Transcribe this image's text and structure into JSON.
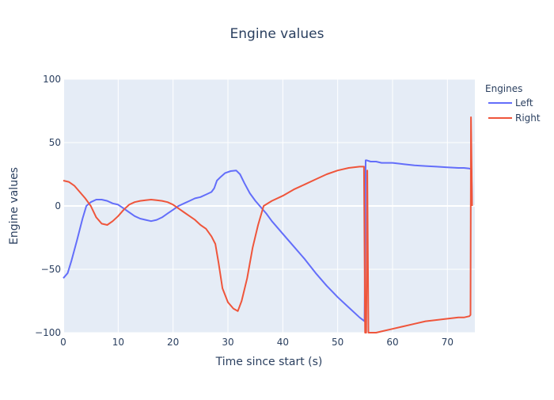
{
  "chart_data": {
    "type": "line",
    "title": "Engine values",
    "xlabel": "Time since start (s)",
    "ylabel": "Engine values",
    "xlim": [
      0,
      75
    ],
    "ylim": [
      -100,
      100
    ],
    "x_ticks": [
      0,
      10,
      20,
      30,
      40,
      50,
      60,
      70
    ],
    "y_ticks": [
      -100,
      -50,
      0,
      50,
      100
    ],
    "x_tick_labels": [
      "0",
      "10",
      "20",
      "30",
      "40",
      "50",
      "60",
      "70"
    ],
    "y_tick_labels": [
      "−100",
      "−50",
      "0",
      "50",
      "100"
    ],
    "grid": true,
    "plot_background": "#e5ecf6",
    "legend": {
      "title": "Engines",
      "position": "right"
    },
    "series": [
      {
        "name": "Left",
        "color": "#636efa",
        "x": [
          0,
          0.8,
          1.5,
          2.5,
          3.5,
          4.2,
          5,
          6,
          7,
          8,
          9,
          10,
          11,
          12,
          13,
          14,
          15,
          16,
          17,
          18,
          19,
          20,
          21,
          22,
          23,
          24,
          25,
          26,
          27,
          27.5,
          28,
          28.7,
          29.5,
          30.5,
          31.5,
          32.2,
          33,
          34,
          35,
          36,
          37,
          38,
          40,
          42,
          44,
          46,
          48,
          50,
          52,
          54,
          54.9,
          55.1,
          55.3,
          56,
          57,
          58,
          60,
          62,
          64,
          66,
          68,
          70,
          72,
          73,
          74,
          74.4,
          74.5
        ],
        "y": [
          -57,
          -53,
          -43,
          -27,
          -10,
          0,
          3,
          5,
          5,
          4,
          2,
          1,
          -2,
          -5,
          -8,
          -10,
          -11,
          -12,
          -11,
          -9,
          -6,
          -3,
          0,
          2,
          4,
          6,
          7,
          9,
          11,
          14,
          20,
          23,
          26,
          27.5,
          28,
          25,
          18,
          10,
          4,
          -1,
          -6,
          -12,
          -22,
          -32,
          -42,
          -53,
          -63,
          -72,
          -80,
          -88,
          -91,
          36,
          36,
          35,
          35,
          34,
          34,
          33,
          32,
          31.5,
          31,
          30.5,
          30,
          30,
          29.5,
          29,
          0
        ]
      },
      {
        "name": "Right",
        "color": "#ef553b",
        "x": [
          0,
          1,
          2,
          3,
          4,
          5,
          6,
          7,
          8,
          9,
          10,
          11,
          12,
          13,
          14,
          15,
          16,
          17,
          18,
          19,
          20,
          21,
          22,
          23,
          24,
          25,
          26,
          27,
          27.7,
          28.3,
          29,
          30,
          31,
          31.8,
          32.5,
          33.5,
          34.5,
          35.5,
          36.5,
          38,
          40,
          42,
          44,
          46,
          48,
          50,
          52,
          54,
          54.8,
          55.0,
          55.2,
          55.4,
          55.6,
          57,
          58,
          60,
          62,
          64,
          66,
          68,
          70,
          72,
          73,
          74,
          74.2,
          74.3,
          74.5
        ],
        "y": [
          20,
          19,
          16,
          11,
          6,
          0,
          -9,
          -14,
          -15,
          -12,
          -8,
          -3,
          1,
          3,
          4,
          4.5,
          5,
          4.5,
          4,
          3,
          1,
          -2,
          -5,
          -8,
          -11,
          -15,
          -18,
          -24,
          -30,
          -45,
          -65,
          -76,
          -81,
          -83,
          -75,
          -57,
          -33,
          -15,
          0,
          4,
          8,
          13,
          17,
          21,
          25,
          28,
          30,
          31,
          31,
          -100,
          -100,
          28,
          -100,
          -100,
          -99,
          -97,
          -95,
          -93,
          -91,
          -90,
          -89,
          -88,
          -88,
          -87,
          -86,
          70,
          0
        ]
      }
    ]
  }
}
